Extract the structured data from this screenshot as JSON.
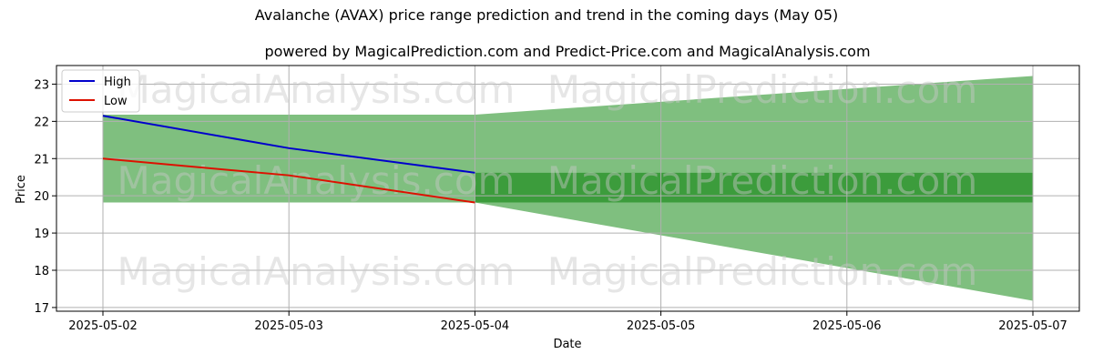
{
  "chart_data": {
    "type": "line",
    "title": "Avalanche (AVAX) price range prediction and trend in the coming days (May 05)",
    "subtitle": "powered by MagicalPrediction.com and Predict-Price.com and MagicalAnalysis.com",
    "xlabel": "Date",
    "ylabel": "Price",
    "x_ticks": [
      "2025-05-02",
      "2025-05-03",
      "2025-05-04",
      "2025-05-05",
      "2025-05-06",
      "2025-05-07"
    ],
    "y_ticks": [
      17,
      18,
      19,
      20,
      21,
      22,
      23
    ],
    "ylim": [
      16.9,
      23.5
    ],
    "grid": true,
    "legend_position": "top-left",
    "series": [
      {
        "name": "High",
        "color": "#0000cc",
        "x": [
          "2025-05-02",
          "2025-05-03",
          "2025-05-04"
        ],
        "values": [
          22.15,
          21.28,
          20.62
        ]
      },
      {
        "name": "Low",
        "color": "#dd1100",
        "x": [
          "2025-05-02",
          "2025-05-03",
          "2025-05-04"
        ],
        "values": [
          21.0,
          20.55,
          19.82
        ]
      }
    ],
    "bands": [
      {
        "color": "#7fbf7f",
        "x": [
          "2025-05-02",
          "2025-05-04"
        ],
        "upper": [
          22.18,
          22.18
        ],
        "lower": [
          19.82,
          19.82
        ]
      },
      {
        "color": "#7fbf7f",
        "x": [
          "2025-05-04",
          "2025-05-07"
        ],
        "upper": [
          22.18,
          23.22
        ],
        "lower": [
          19.82,
          17.18
        ]
      },
      {
        "color": "#3c9c3c",
        "x": [
          "2025-05-04",
          "2025-05-07"
        ],
        "upper": [
          20.62,
          20.62
        ],
        "lower": [
          19.82,
          19.82
        ]
      }
    ],
    "watermarks": [
      "MagicalAnalysis.com",
      "MagicalPrediction.com"
    ]
  }
}
